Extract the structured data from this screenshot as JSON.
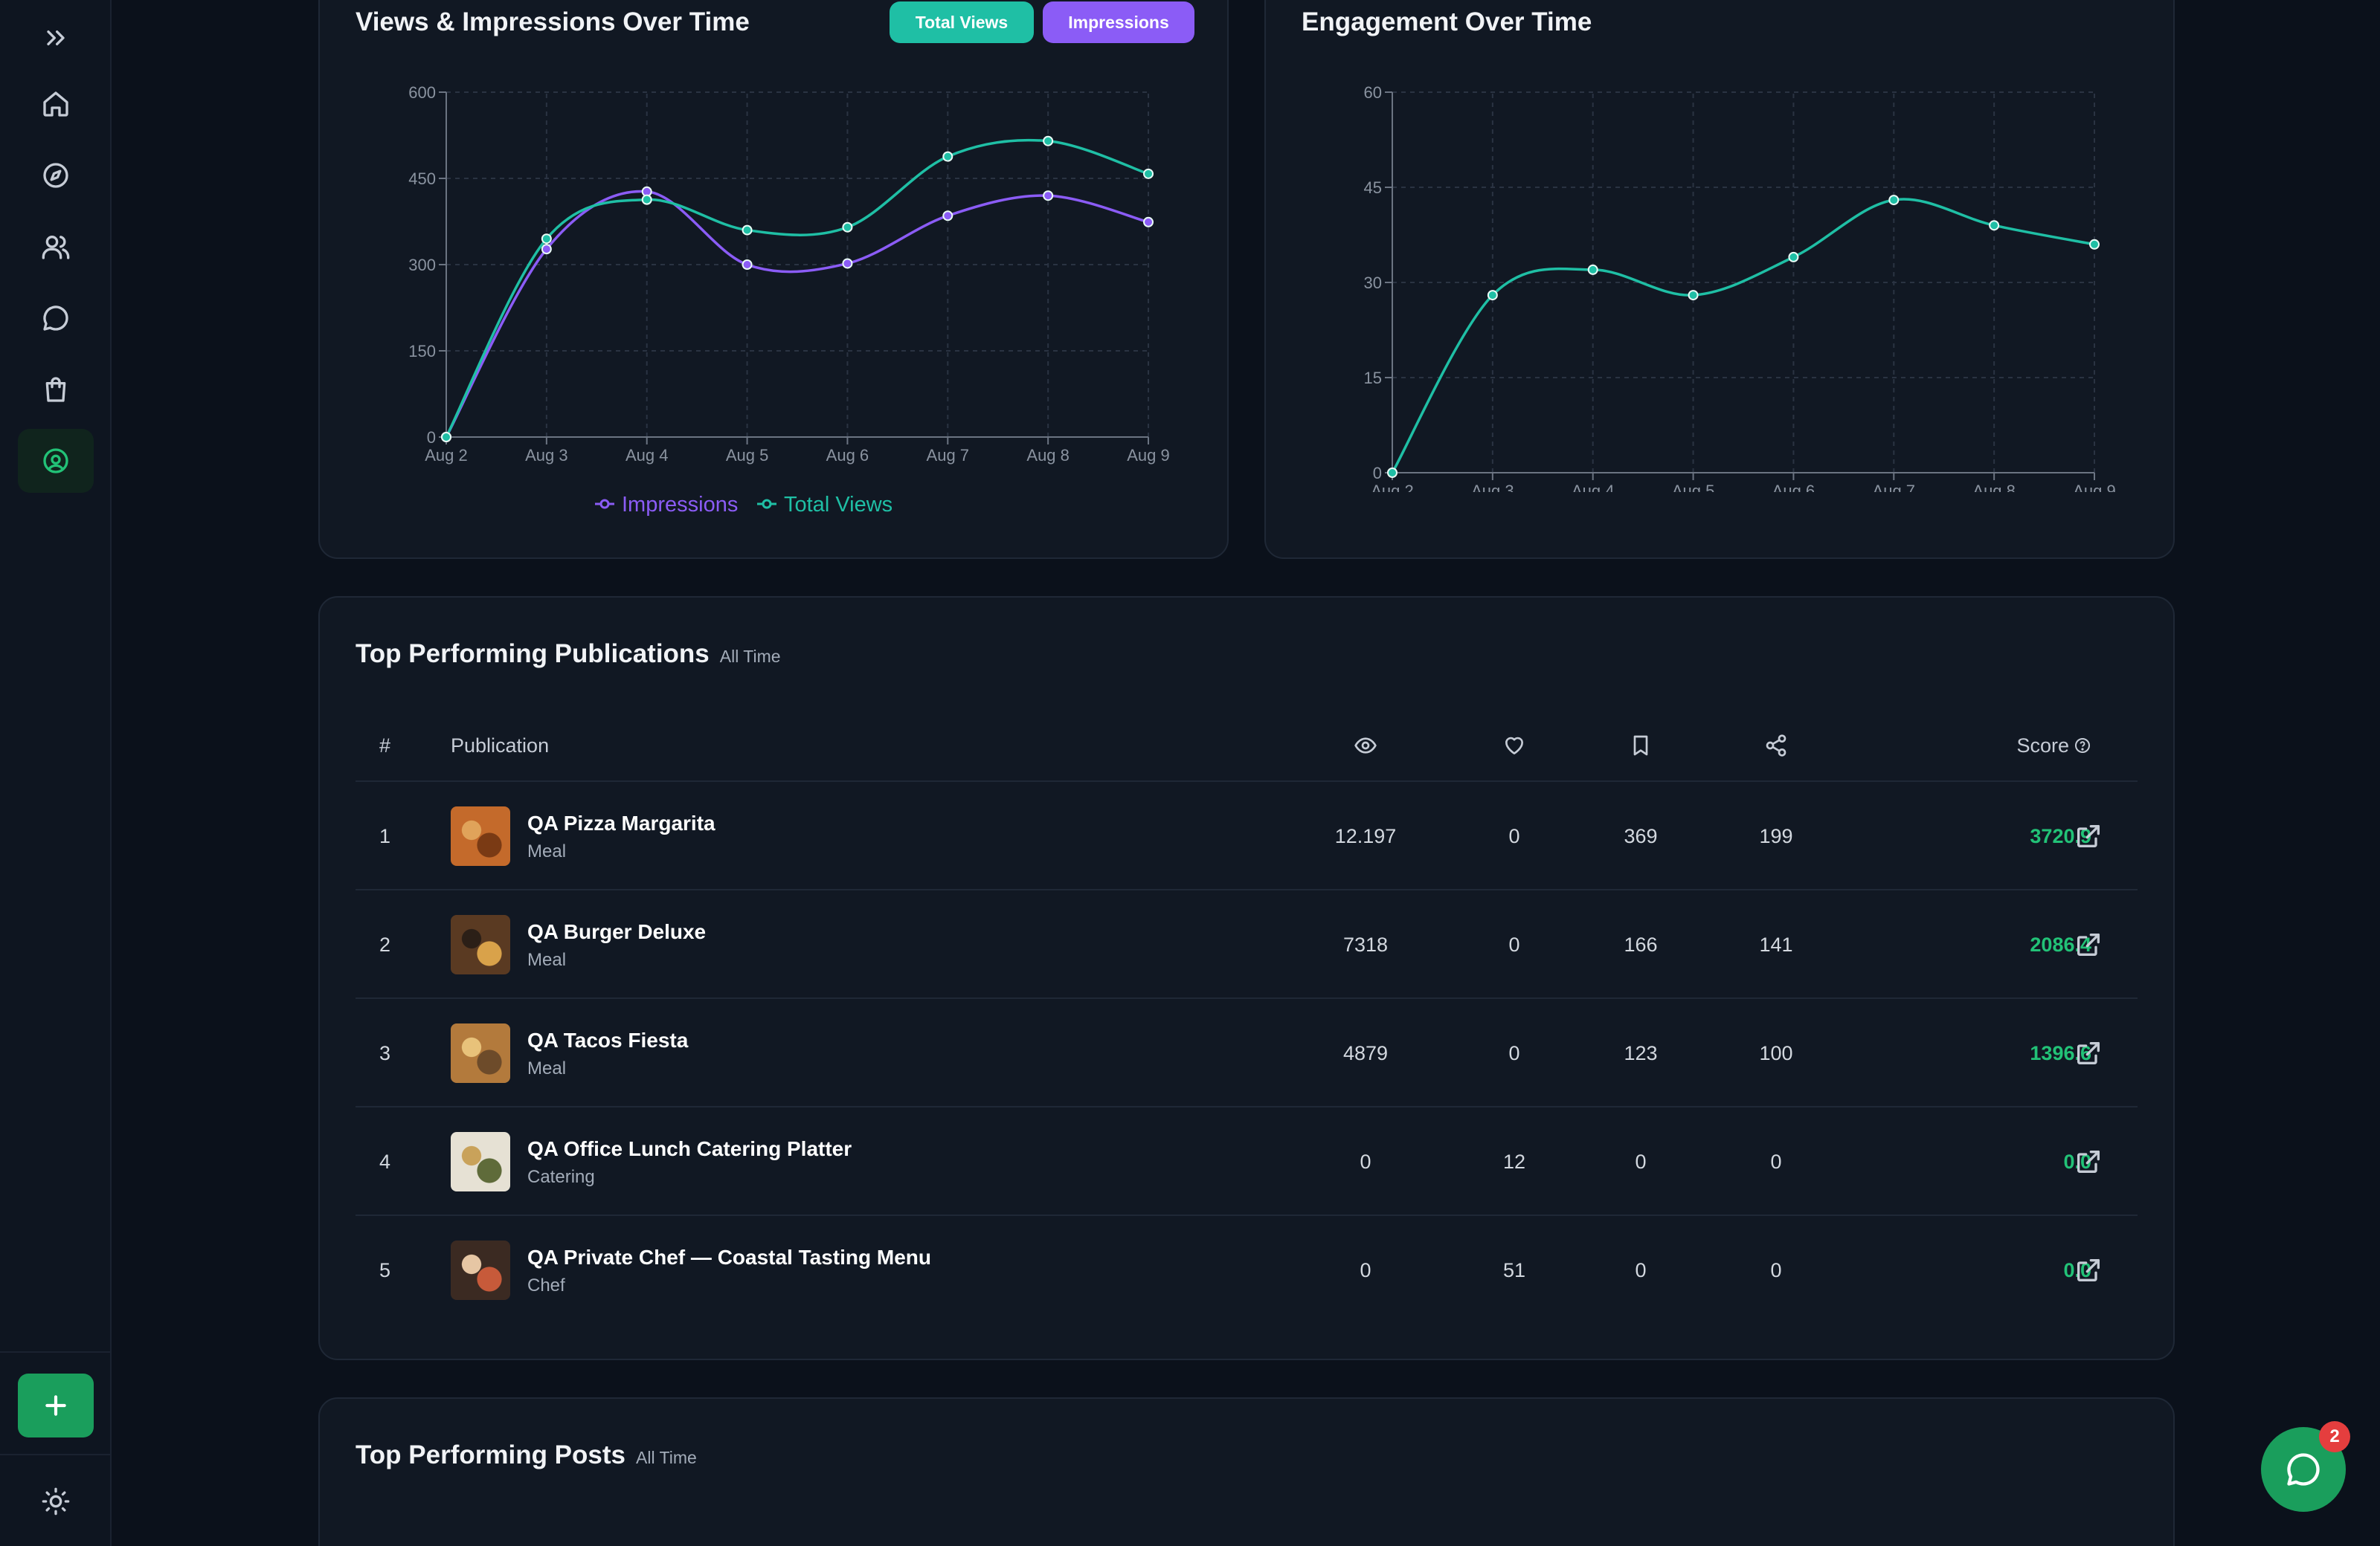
{
  "sidebar": {
    "items": [
      {
        "icon": "chevrons-right-icon"
      },
      {
        "icon": "home-icon"
      },
      {
        "icon": "compass-icon"
      },
      {
        "icon": "users-icon"
      },
      {
        "icon": "message-icon"
      },
      {
        "icon": "shopping-bag-icon"
      },
      {
        "icon": "user-circle-icon",
        "active": true
      }
    ],
    "add_icon": "plus-icon",
    "theme_icon": "sun-icon"
  },
  "views_chart": {
    "title": "Views & Impressions Over Time",
    "toggles": {
      "total_views": "Total Views",
      "impressions": "Impressions"
    },
    "legend": {
      "impressions": "Impressions",
      "total_views": "Total Views"
    }
  },
  "engagement_chart": {
    "title": "Engagement Over Time"
  },
  "chart_data": [
    {
      "type": "line",
      "title": "Views & Impressions Over Time",
      "x": [
        "Aug 2",
        "Aug 3",
        "Aug 4",
        "Aug 5",
        "Aug 6",
        "Aug 7",
        "Aug 8",
        "Aug 9"
      ],
      "ylim": [
        0,
        600
      ],
      "yticks": [
        0,
        150,
        300,
        450,
        600
      ],
      "grid": true,
      "legend": "bottom",
      "series": [
        {
          "name": "Impressions",
          "color": "#8b5cf6",
          "values": [
            0,
            327,
            427,
            300,
            302,
            385,
            420,
            374
          ]
        },
        {
          "name": "Total Views",
          "color": "#1fbfa5",
          "values": [
            0,
            345,
            413,
            360,
            365,
            488,
            515,
            458
          ]
        }
      ]
    },
    {
      "type": "line",
      "title": "Engagement Over Time",
      "x": [
        "Aug 2",
        "Aug 3",
        "Aug 4",
        "Aug 5",
        "Aug 6",
        "Aug 7",
        "Aug 8",
        "Aug 9"
      ],
      "ylim": [
        0,
        60
      ],
      "yticks": [
        0,
        15,
        30,
        45,
        60
      ],
      "grid": true,
      "series": [
        {
          "color": "#1fbfa5",
          "values": [
            0,
            28,
            32,
            28,
            34,
            43,
            39,
            36
          ]
        }
      ]
    }
  ],
  "publications": {
    "title": "Top Performing Publications",
    "badge": "All Time",
    "headers": {
      "rank": "#",
      "publication": "Publication",
      "score": "Score"
    },
    "header_icons": [
      "eye-icon",
      "heart-icon",
      "bookmark-icon",
      "share-icon",
      "help-circle-icon"
    ],
    "rows": [
      {
        "rank": "1",
        "name": "QA Pizza Margarita",
        "category": "Meal",
        "views": "12.197",
        "likes": "0",
        "saves": "369",
        "shares": "199",
        "score": "3720.9"
      },
      {
        "rank": "2",
        "name": "QA Burger Deluxe",
        "category": "Meal",
        "views": "7318",
        "likes": "0",
        "saves": "166",
        "shares": "141",
        "score": "2086.4"
      },
      {
        "rank": "3",
        "name": "QA Tacos Fiesta",
        "category": "Meal",
        "views": "4879",
        "likes": "0",
        "saves": "123",
        "shares": "100",
        "score": "1396.6"
      },
      {
        "rank": "4",
        "name": "QA Office Lunch Catering Platter",
        "category": "Catering",
        "views": "0",
        "likes": "12",
        "saves": "0",
        "shares": "0",
        "score": "0.0"
      },
      {
        "rank": "5",
        "name": "QA Private Chef — Coastal Tasting Menu",
        "category": "Chef",
        "views": "0",
        "likes": "51",
        "saves": "0",
        "shares": "0",
        "score": "0.0"
      }
    ]
  },
  "posts": {
    "title": "Top Performing Posts",
    "badge": "All Time"
  },
  "chat": {
    "badge_count": "2",
    "icon": "chat-bubble-icon"
  },
  "colors": {
    "accent_green": "#1a9e5c",
    "teal": "#1fbfa5",
    "purple": "#8b5cf6",
    "score_green": "#22c277"
  }
}
